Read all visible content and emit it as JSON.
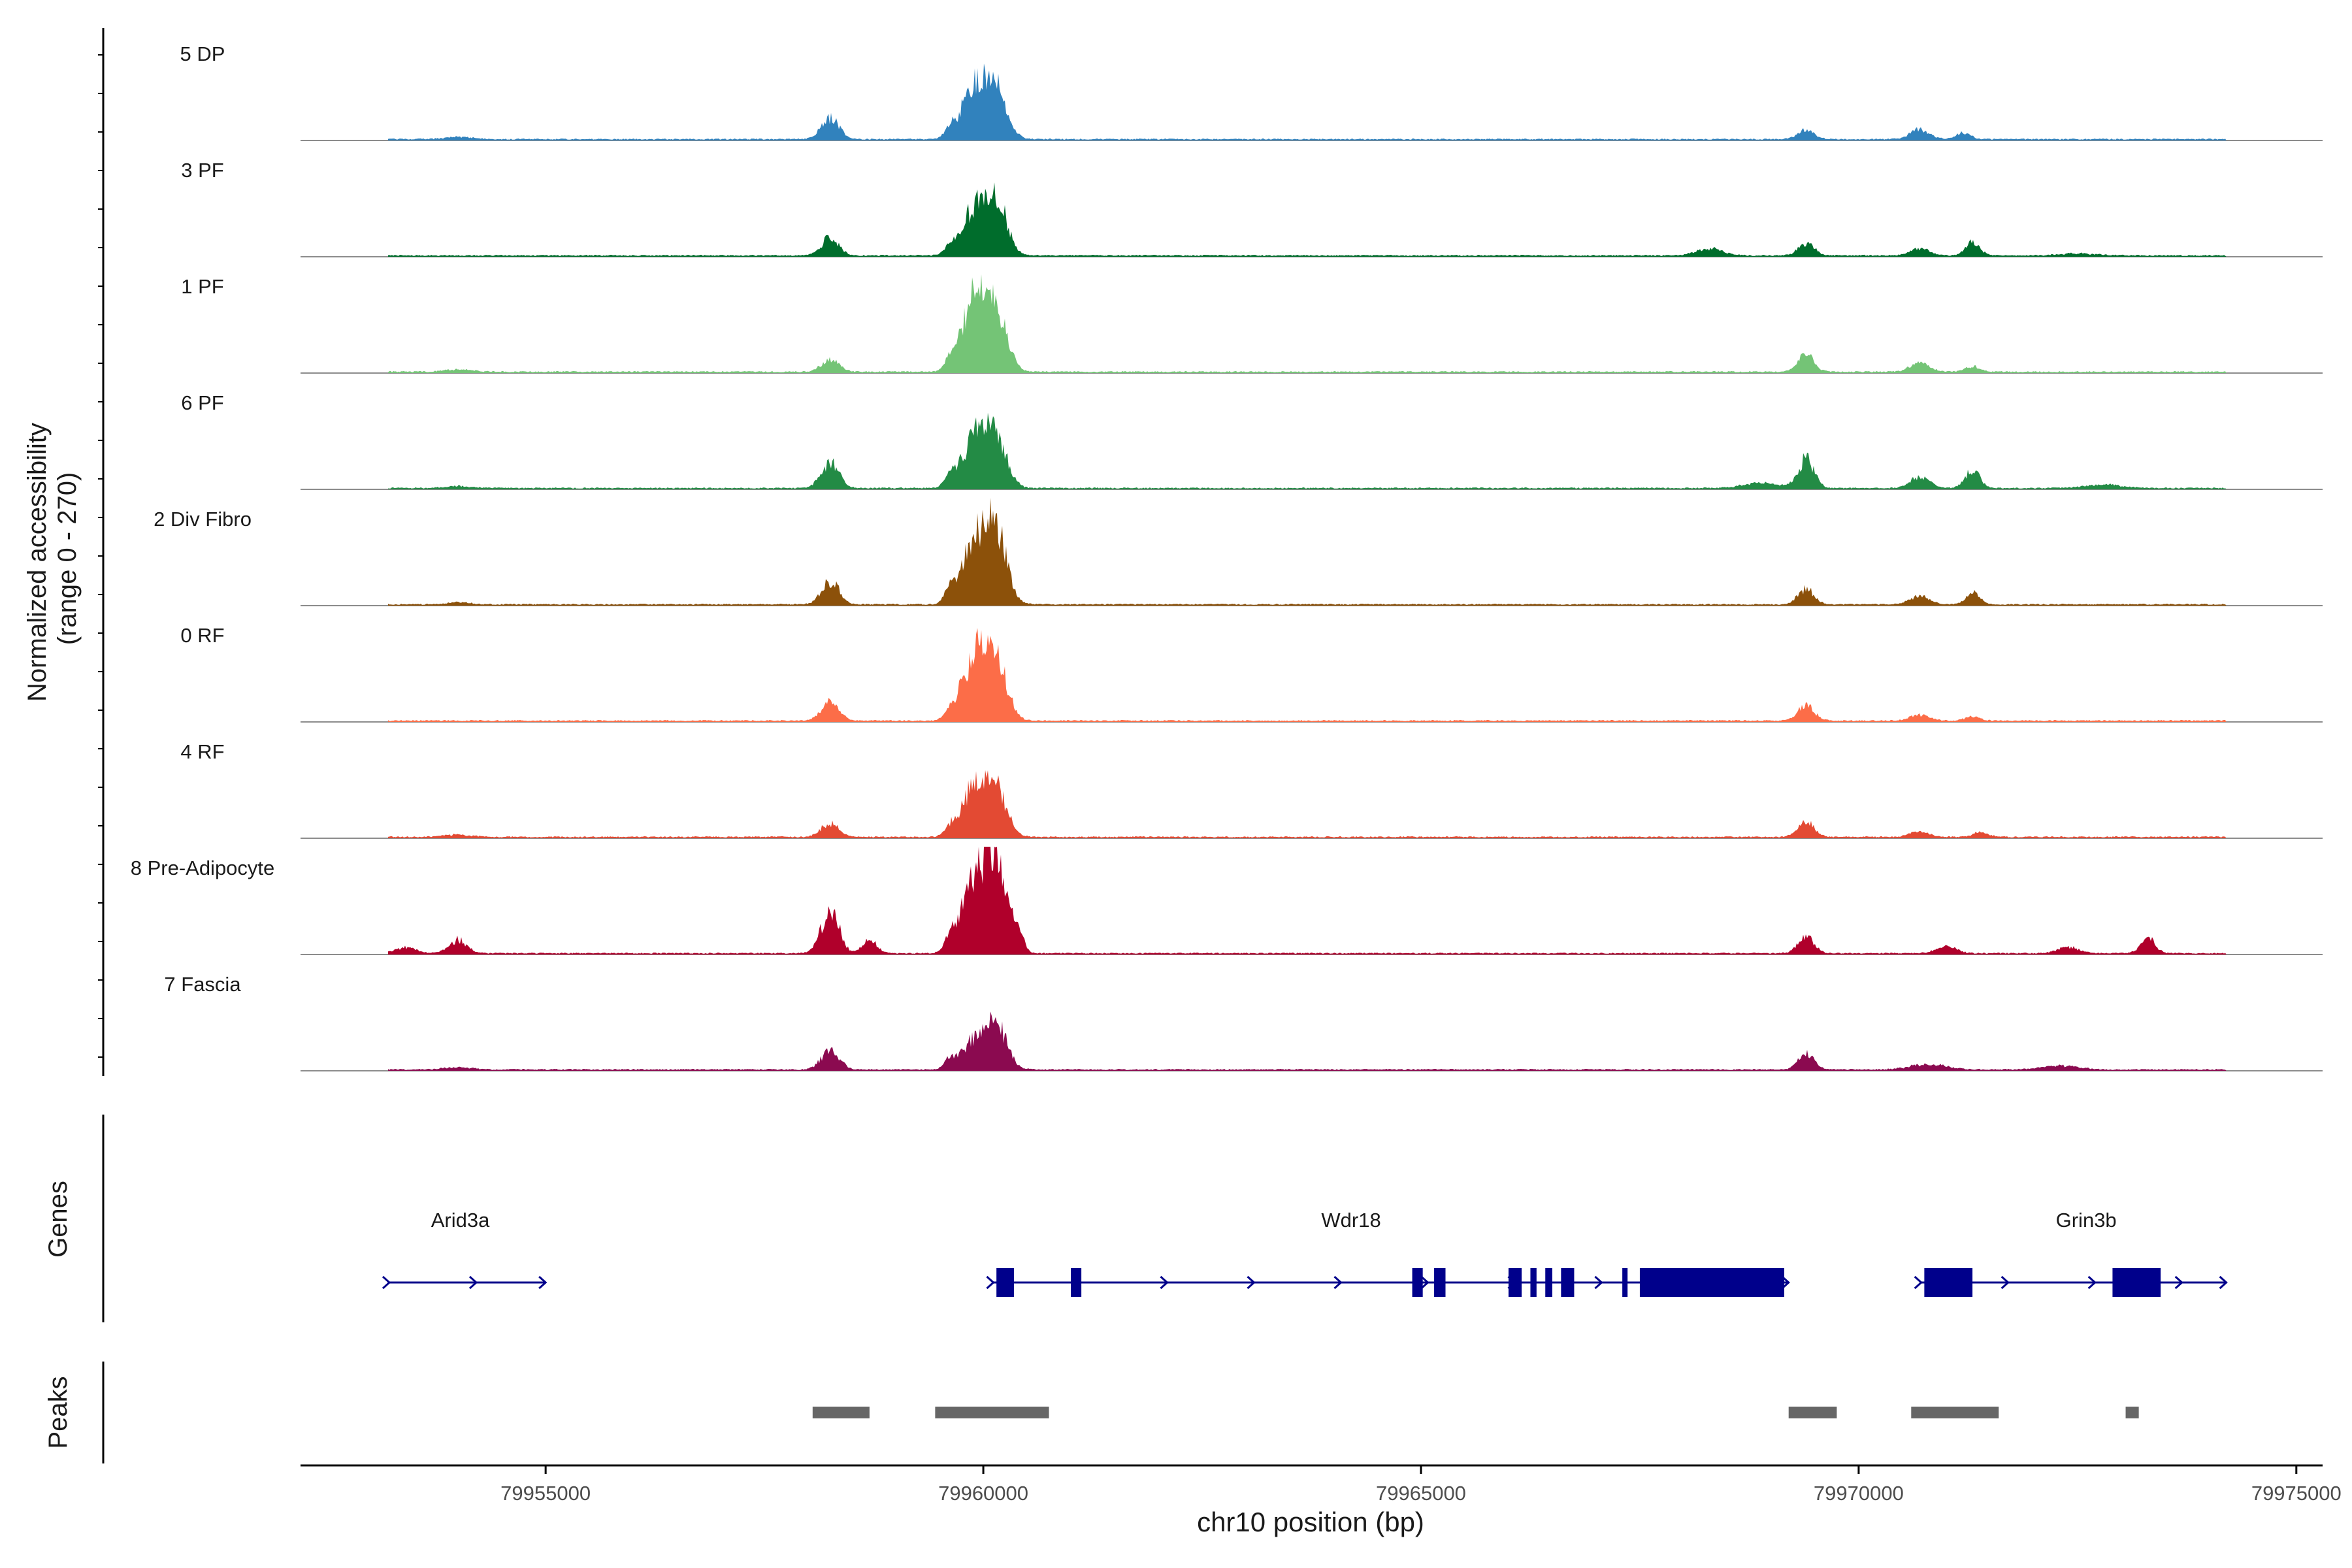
{
  "chart_data": {
    "type": "area",
    "title": "",
    "ylabel": "Normalized accessibility\n(range 0 - 270)",
    "ylabel_lines": [
      "Normalized accessibility",
      "(range 0 - 270)"
    ],
    "ylim": [
      0,
      270
    ],
    "xlabel": "chr10 position (bp)",
    "xlim": [
      79952200,
      79975300
    ],
    "x_ticks": [
      79955000,
      79960000,
      79965000,
      79970000,
      79975000
    ],
    "x_tick_labels": [
      "79955000",
      "79960000",
      "79965000",
      "79970000",
      "79975000"
    ],
    "peaks_summary": "Coverage peaks per group as [position_bp, height_normalized, width_bp]",
    "series": [
      {
        "name": "5 DP",
        "color": "#3182bd",
        "peaks": [
          [
            79954000,
            6,
            150
          ],
          [
            79958250,
            55,
            100
          ],
          [
            79959620,
            25,
            60
          ],
          [
            79959900,
            140,
            140
          ],
          [
            79960150,
            120,
            120
          ],
          [
            79969400,
            25,
            90
          ],
          [
            79970700,
            25,
            110
          ],
          [
            79971200,
            16,
            80
          ]
        ]
      },
      {
        "name": "3 PF",
        "color": "#006d2c",
        "peaks": [
          [
            79958250,
            45,
            100
          ],
          [
            79959620,
            20,
            60
          ],
          [
            79959900,
            120,
            140
          ],
          [
            79960150,
            135,
            120
          ],
          [
            79968300,
            18,
            150
          ],
          [
            79969400,
            32,
            90
          ],
          [
            79970700,
            18,
            110
          ],
          [
            79971300,
            36,
            80
          ],
          [
            79972500,
            5,
            200
          ]
        ]
      },
      {
        "name": "1 PF",
        "color": "#74c476",
        "peaks": [
          [
            79954000,
            6,
            150
          ],
          [
            79958250,
            30,
            100
          ],
          [
            79959620,
            25,
            60
          ],
          [
            79959900,
            185,
            140
          ],
          [
            79960150,
            150,
            120
          ],
          [
            79969400,
            45,
            90
          ],
          [
            79970700,
            22,
            110
          ],
          [
            79971300,
            14,
            80
          ]
        ]
      },
      {
        "name": "6 PF",
        "color": "#238b45",
        "peaks": [
          [
            79954000,
            5,
            150
          ],
          [
            79958250,
            65,
            100
          ],
          [
            79959620,
            30,
            60
          ],
          [
            79959900,
            130,
            140
          ],
          [
            79960150,
            125,
            120
          ],
          [
            79968900,
            14,
            200
          ],
          [
            79969400,
            75,
            90
          ],
          [
            79970700,
            28,
            110
          ],
          [
            79971300,
            48,
            80
          ],
          [
            79972800,
            10,
            200
          ]
        ]
      },
      {
        "name": "2 Div Fibro",
        "color": "#8c510a",
        "peaks": [
          [
            79954000,
            5,
            150
          ],
          [
            79958250,
            60,
            100
          ],
          [
            79959620,
            35,
            60
          ],
          [
            79959900,
            160,
            140
          ],
          [
            79960150,
            175,
            120
          ],
          [
            79969400,
            40,
            90
          ],
          [
            79970700,
            20,
            110
          ],
          [
            79971300,
            30,
            80
          ]
        ]
      },
      {
        "name": "0 RF",
        "color": "#fc6d48",
        "peaks": [
          [
            79958250,
            45,
            100
          ],
          [
            79959620,
            20,
            60
          ],
          [
            79959900,
            165,
            140
          ],
          [
            79960150,
            145,
            120
          ],
          [
            79969400,
            40,
            90
          ],
          [
            79970700,
            15,
            110
          ],
          [
            79971300,
            10,
            80
          ]
        ]
      },
      {
        "name": "4 RF",
        "color": "#e34a33",
        "peaks": [
          [
            79954000,
            6,
            150
          ],
          [
            79958250,
            35,
            100
          ],
          [
            79959620,
            20,
            60
          ],
          [
            79959900,
            130,
            140
          ],
          [
            79960150,
            110,
            120
          ],
          [
            79969400,
            40,
            90
          ],
          [
            79970700,
            14,
            110
          ],
          [
            79971400,
            14,
            80
          ]
        ]
      },
      {
        "name": "8 Pre-Adipocyte",
        "color": "#b0002b",
        "peaks": [
          [
            79953400,
            15,
            120
          ],
          [
            79954000,
            35,
            100
          ],
          [
            79958250,
            110,
            100
          ],
          [
            79958700,
            35,
            80
          ],
          [
            79959620,
            35,
            60
          ],
          [
            79959900,
            190,
            140
          ],
          [
            79960150,
            215,
            120
          ],
          [
            79960400,
            50,
            60
          ],
          [
            79969400,
            45,
            90
          ],
          [
            79971000,
            18,
            110
          ],
          [
            79973300,
            40,
            80
          ],
          [
            79972400,
            16,
            120
          ]
        ]
      },
      {
        "name": "7 Fascia",
        "color": "#8b0a50",
        "peaks": [
          [
            79954000,
            6,
            150
          ],
          [
            79958250,
            50,
            100
          ],
          [
            79959620,
            25,
            60
          ],
          [
            79959900,
            75,
            140
          ],
          [
            79960150,
            110,
            120
          ],
          [
            79969400,
            40,
            90
          ],
          [
            79970800,
            14,
            200
          ],
          [
            79972300,
            10,
            200
          ]
        ]
      }
    ],
    "genes_panel": {
      "label": "Genes",
      "genes": [
        {
          "name": "Arid3a",
          "start": 79953200,
          "end": 79955000,
          "strand": "+",
          "exons": []
        },
        {
          "name": "Wdr18",
          "start": 79960100,
          "end": 79969200,
          "strand": "+",
          "exons": [
            [
              79960150,
              79960350
            ],
            [
              79961000,
              79961120
            ],
            [
              79964900,
              79965020
            ],
            [
              79965150,
              79965280
            ],
            [
              79966000,
              79966150
            ],
            [
              79966250,
              79966320
            ],
            [
              79966420,
              79966500
            ],
            [
              79966600,
              79966750
            ],
            [
              79967300,
              79967360
            ],
            [
              79967500,
              79969150
            ]
          ]
        },
        {
          "name": "Grin3b",
          "start": 79970700,
          "end": 79974200,
          "strand": "+",
          "exons": [
            [
              79970750,
              79971300
            ],
            [
              79972900,
              79973450
            ]
          ]
        }
      ]
    },
    "peaks_panel": {
      "label": "Peaks",
      "regions": [
        [
          79958050,
          79958700
        ],
        [
          79959450,
          79960750
        ],
        [
          79969200,
          79969750
        ],
        [
          79970600,
          79971600
        ],
        [
          79973050,
          79973200
        ]
      ]
    },
    "colors": {
      "axis": "#000000",
      "baseline": "#8c8c8c",
      "gene": "#00008b",
      "peak_region": "#666666"
    }
  }
}
